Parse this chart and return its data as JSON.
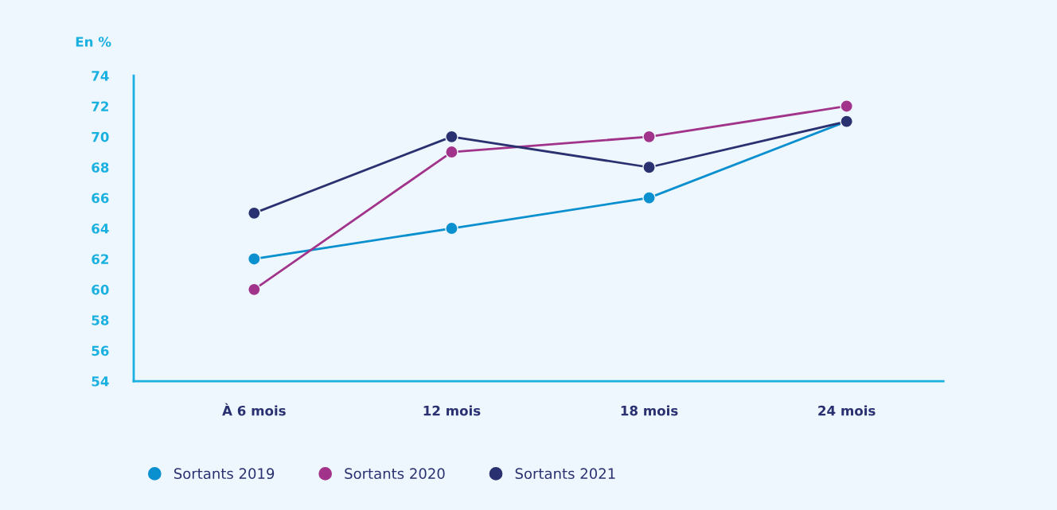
{
  "chart_data": {
    "type": "line",
    "ylabel": "En %",
    "categories": [
      "À 6 mois",
      "12 mois",
      "18 mois",
      "24 mois"
    ],
    "series": [
      {
        "name": "Sortants 2019",
        "color": "#0a8fcf",
        "values": [
          62,
          64,
          66,
          71
        ]
      },
      {
        "name": "Sortants 2020",
        "color": "#a2338a",
        "values": [
          60,
          69,
          70,
          72
        ]
      },
      {
        "name": "Sortants 2021",
        "color": "#2a3170",
        "values": [
          65,
          70,
          68,
          71
        ]
      }
    ],
    "ylim": [
      54,
      74
    ],
    "yticks": [
      54,
      56,
      58,
      60,
      62,
      64,
      66,
      68,
      70,
      72,
      74
    ],
    "grid": false,
    "legend": "bottom",
    "marker": "circle",
    "line_style": "solid"
  }
}
